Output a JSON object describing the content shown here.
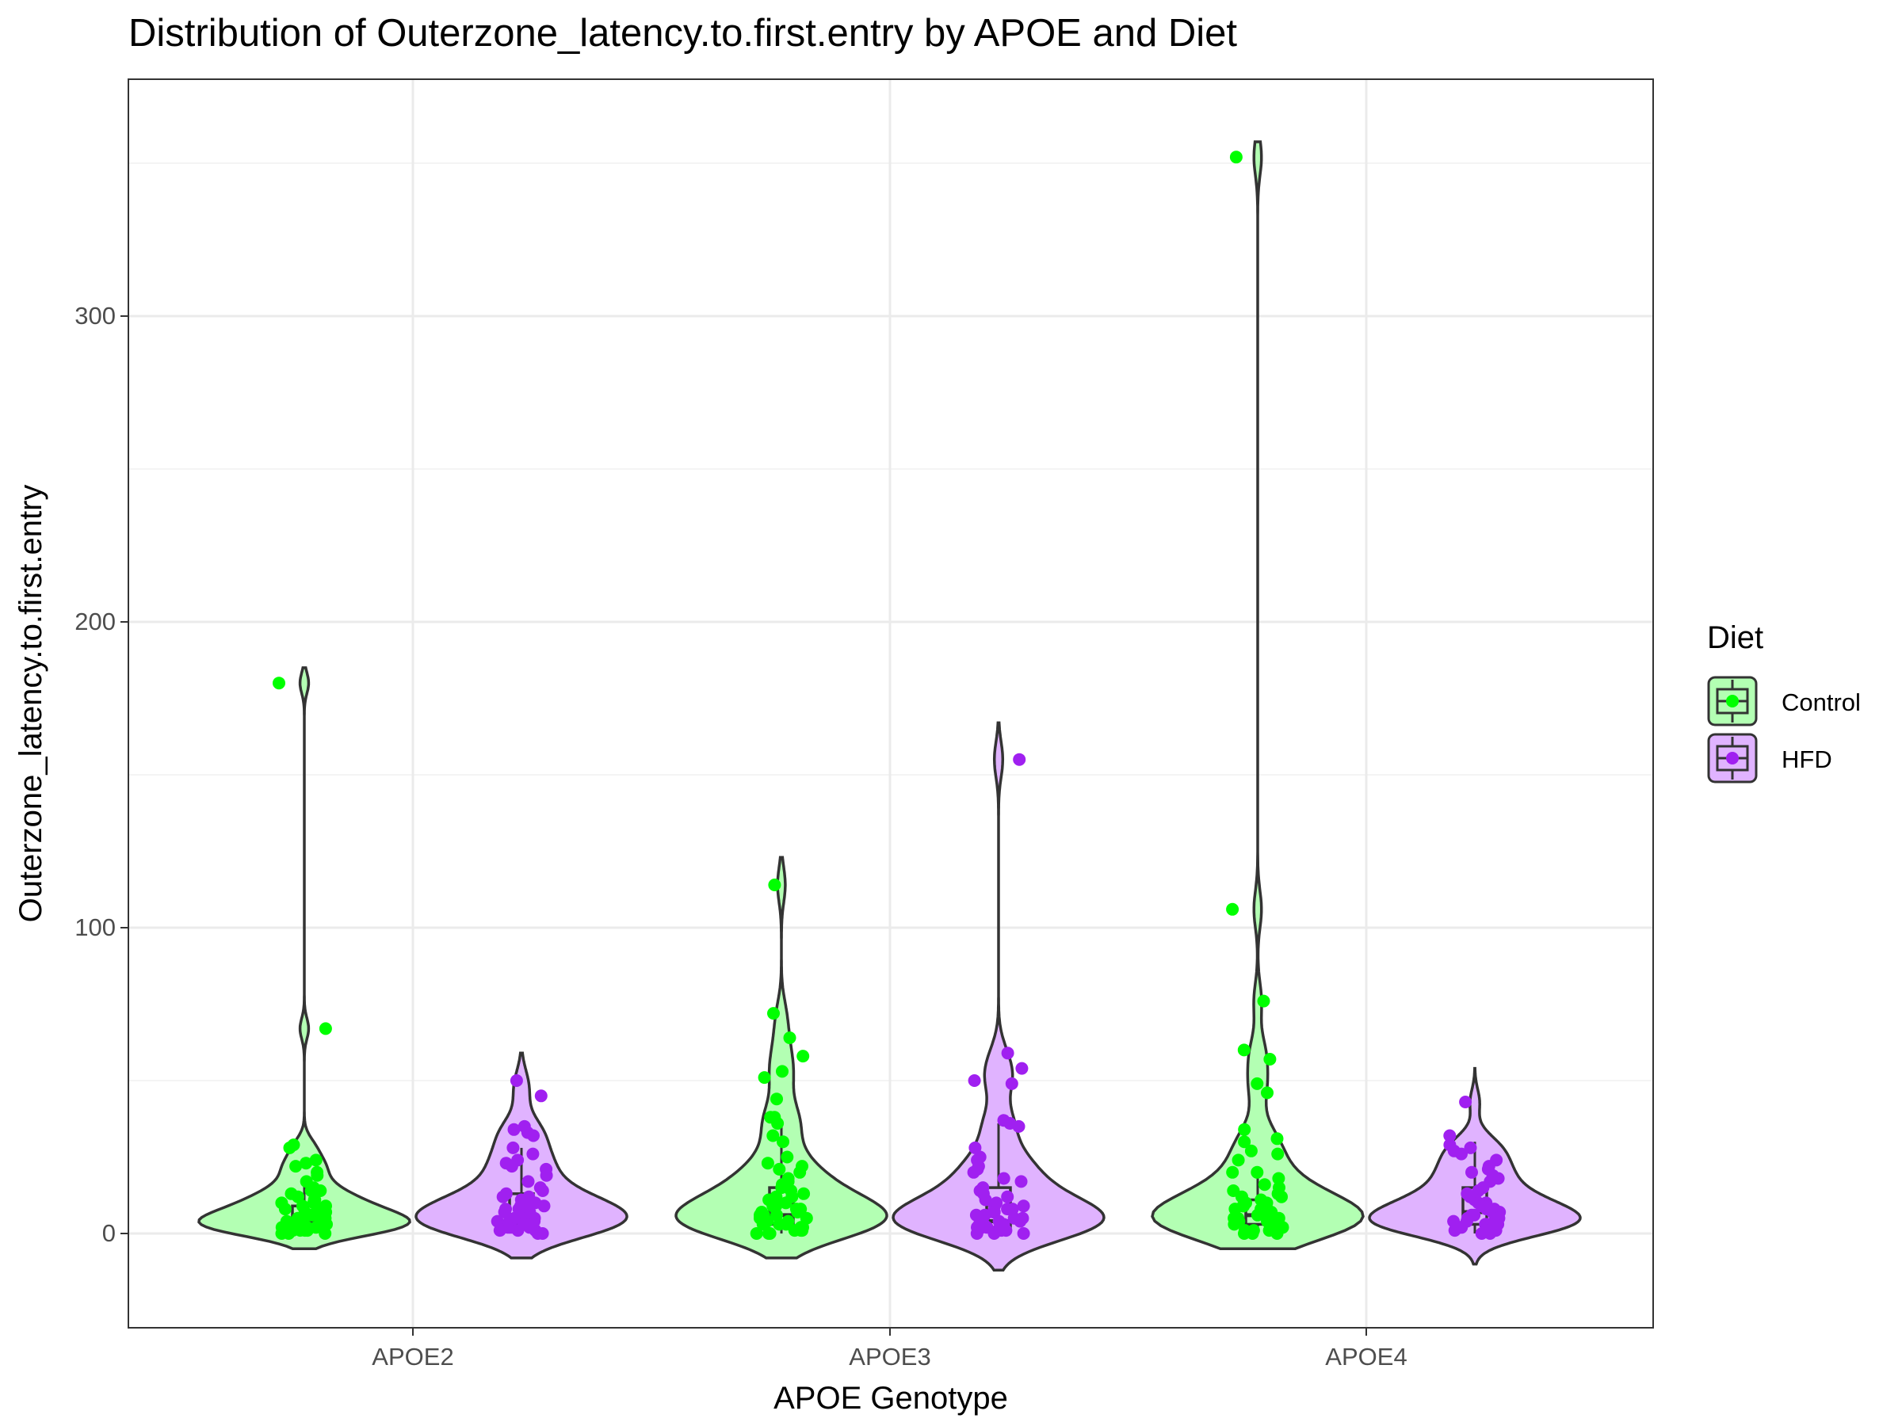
{
  "chart_data": {
    "type": "violin",
    "title": "Distribution of Outerzone_latency.to.first.entry by APOE and Diet",
    "xlabel": "APOE Genotype",
    "ylabel": "Outerzone_latency.to.first.entry",
    "categories": [
      "APOE2",
      "APOE3",
      "APOE4"
    ],
    "ylim": [
      -30,
      380
    ],
    "y_ticks": [
      0,
      100,
      200,
      300
    ],
    "grid": true,
    "legend": {
      "title": "Diet",
      "position": "right",
      "entries": [
        "Control",
        "HFD"
      ]
    },
    "series": [
      {
        "name": "Control",
        "color": "#00FF00",
        "fill": "#B3FFB3",
        "groups": [
          {
            "category": "APOE2",
            "box": {
              "min": 0,
              "q1": 2,
              "median": 4,
              "q3": 9,
              "max": 18
            },
            "violin_range": [
              -5,
              185
            ],
            "points": [
              180,
              67,
              29,
              28,
              24,
              23,
              22,
              20,
              19,
              17,
              15,
              14,
              14,
              13,
              12,
              11,
              11,
              10,
              10,
              9,
              9,
              8,
              8,
              7,
              7,
              6,
              6,
              6,
              5,
              5,
              5,
              4,
              4,
              4,
              4,
              3,
              3,
              3,
              3,
              2,
              2,
              2,
              2,
              1,
              1,
              1,
              1,
              0,
              0,
              0
            ]
          },
          {
            "category": "APOE3",
            "box": {
              "min": 0,
              "q1": 3,
              "median": 6,
              "q3": 15,
              "max": 35
            },
            "violin_range": [
              -8,
              123
            ],
            "points": [
              114,
              72,
              64,
              58,
              53,
              51,
              44,
              38,
              38,
              36,
              32,
              30,
              25,
              23,
              22,
              21,
              20,
              18,
              17,
              16,
              15,
              14,
              13,
              12,
              12,
              11,
              10,
              10,
              9,
              9,
              8,
              8,
              7,
              7,
              6,
              6,
              6,
              5,
              5,
              4,
              4,
              4,
              3,
              3,
              3,
              2,
              2,
              2,
              1,
              1,
              1,
              0,
              0,
              0
            ]
          },
          {
            "category": "APOE4",
            "box": {
              "min": 0,
              "q1": 3,
              "median": 6,
              "q3": 11,
              "max": 22
            },
            "violin_range": [
              -5,
              357
            ],
            "points": [
              352,
              106,
              76,
              60,
              57,
              49,
              46,
              34,
              31,
              30,
              27,
              26,
              24,
              20,
              20,
              18,
              16,
              15,
              14,
              13,
              12,
              12,
              11,
              10,
              10,
              9,
              9,
              8,
              8,
              7,
              7,
              6,
              6,
              5,
              5,
              5,
              4,
              4,
              4,
              3,
              3,
              3,
              2,
              2,
              2,
              1,
              1,
              1,
              0,
              0,
              0
            ]
          }
        ]
      },
      {
        "name": "HFD",
        "color": "#A020F0",
        "fill": "#E0B3FF",
        "groups": [
          {
            "category": "APOE2",
            "box": {
              "min": 0,
              "q1": 3,
              "median": 6,
              "q3": 13,
              "max": 28
            },
            "violin_range": [
              -8,
              59
            ],
            "points": [
              50,
              45,
              35,
              34,
              33,
              32,
              28,
              26,
              24,
              23,
              22,
              21,
              19,
              17,
              15,
              14,
              13,
              12,
              12,
              11,
              10,
              10,
              9,
              9,
              8,
              8,
              7,
              7,
              6,
              6,
              5,
              5,
              5,
              4,
              4,
              4,
              3,
              3,
              3,
              2,
              2,
              2,
              1,
              1,
              1,
              0,
              0
            ]
          },
          {
            "category": "APOE3",
            "box": {
              "min": 0,
              "q1": 1,
              "median": 4,
              "q3": 15,
              "max": 36
            },
            "violin_range": [
              -12,
              167
            ],
            "points": [
              155,
              59,
              54,
              50,
              49,
              37,
              36,
              35,
              28,
              25,
              24,
              22,
              21,
              20,
              18,
              17,
              15,
              14,
              13,
              12,
              11,
              10,
              9,
              9,
              8,
              8,
              7,
              7,
              6,
              6,
              5,
              5,
              4,
              4,
              4,
              3,
              3,
              3,
              2,
              2,
              2,
              1,
              1,
              1,
              0,
              0,
              0
            ]
          },
          {
            "category": "APOE4",
            "box": {
              "min": 0,
              "q1": 3,
              "median": 7,
              "q3": 15,
              "max": 30
            },
            "violin_range": [
              -10,
              54
            ],
            "points": [
              43,
              32,
              29,
              28,
              27,
              26,
              24,
              22,
              21,
              20,
              19,
              18,
              17,
              15,
              14,
              13,
              12,
              12,
              11,
              10,
              10,
              9,
              9,
              8,
              8,
              7,
              7,
              6,
              6,
              5,
              5,
              5,
              4,
              4,
              4,
              3,
              3,
              3,
              2,
              2,
              2,
              1,
              1,
              1,
              0,
              0
            ]
          }
        ]
      }
    ]
  }
}
